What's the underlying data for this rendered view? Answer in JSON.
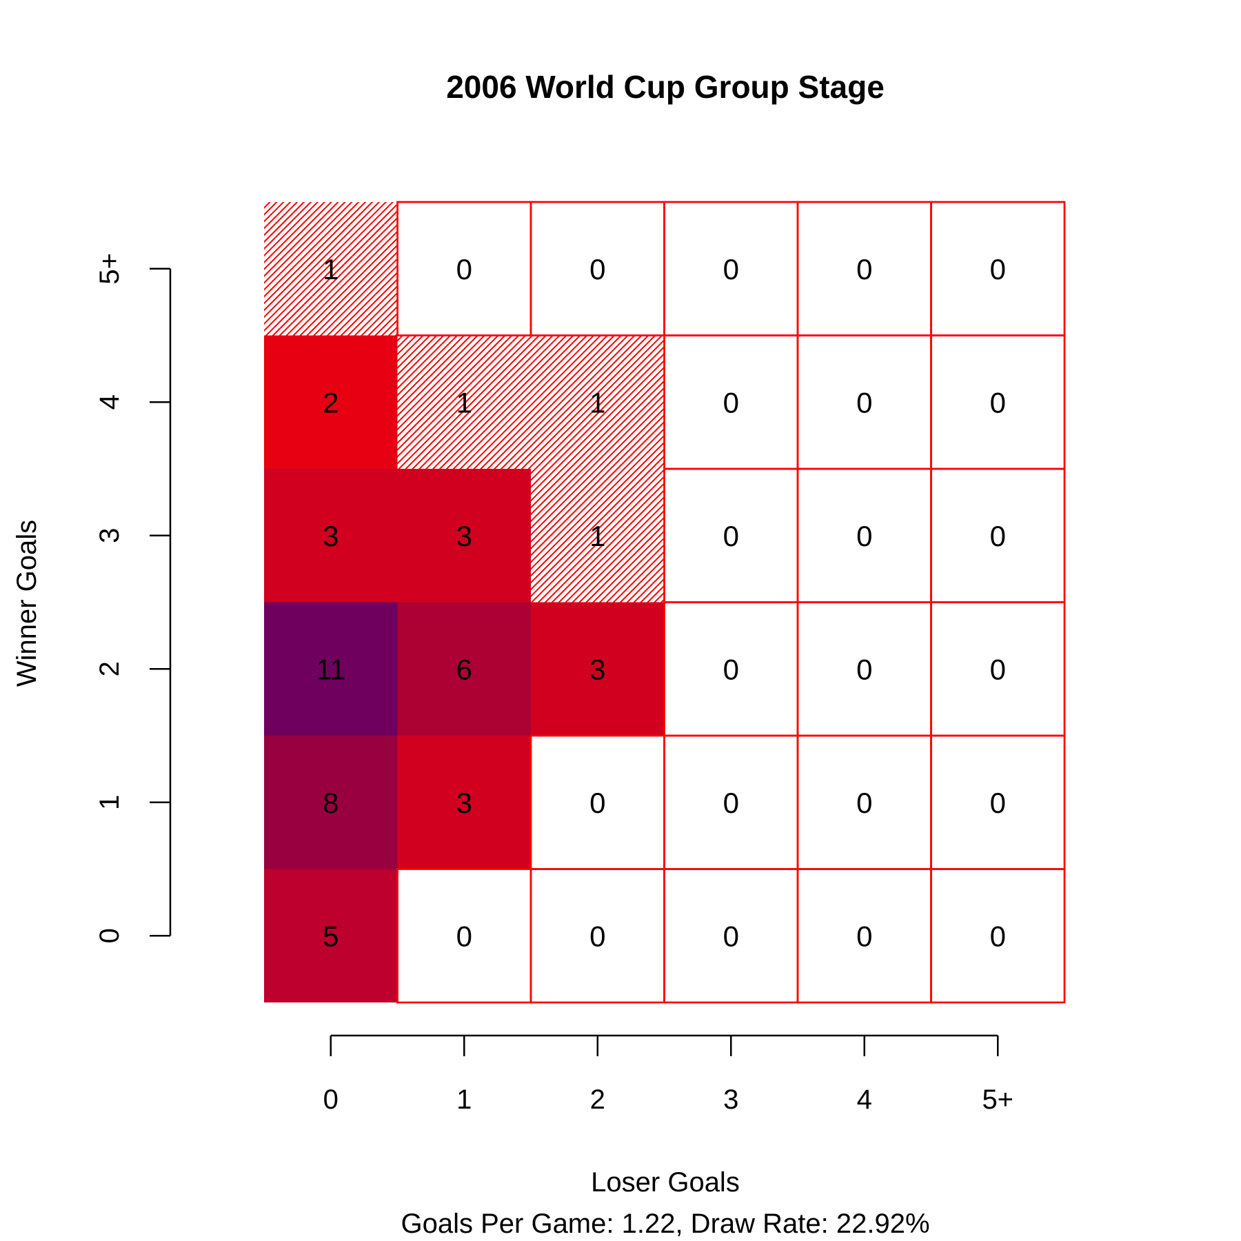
{
  "chart_data": {
    "type": "heatmap",
    "title": "2006 World Cup Group Stage",
    "xlabel": "Loser Goals",
    "ylabel": "Winner Goals",
    "subtitle": "Goals Per Game: 1.22, Draw Rate: 22.92%",
    "x_categories": [
      "0",
      "1",
      "2",
      "3",
      "4",
      "5+"
    ],
    "y_categories": [
      "0",
      "1",
      "2",
      "3",
      "4",
      "5+"
    ],
    "rows": [
      {
        "winner_goals": "0",
        "values": [
          5,
          0,
          0,
          0,
          0,
          0
        ]
      },
      {
        "winner_goals": "1",
        "values": [
          8,
          3,
          0,
          0,
          0,
          0
        ]
      },
      {
        "winner_goals": "2",
        "values": [
          11,
          6,
          3,
          0,
          0,
          0
        ]
      },
      {
        "winner_goals": "3",
        "values": [
          3,
          3,
          1,
          0,
          0,
          0
        ]
      },
      {
        "winner_goals": "4",
        "values": [
          2,
          1,
          1,
          0,
          0,
          0
        ]
      },
      {
        "winner_goals": "5+",
        "values": [
          1,
          0,
          0,
          0,
          0,
          0
        ]
      }
    ],
    "grid": true,
    "colors": {
      "border": "#ff0000",
      "zero": "#ffffff",
      "one_hatch": "#ff0000",
      "scale": {
        "2": "#e60012",
        "3": "#d1001f",
        "5": "#bd002e",
        "6": "#ad0033",
        "8": "#990040",
        "11": "#70005e"
      }
    }
  }
}
